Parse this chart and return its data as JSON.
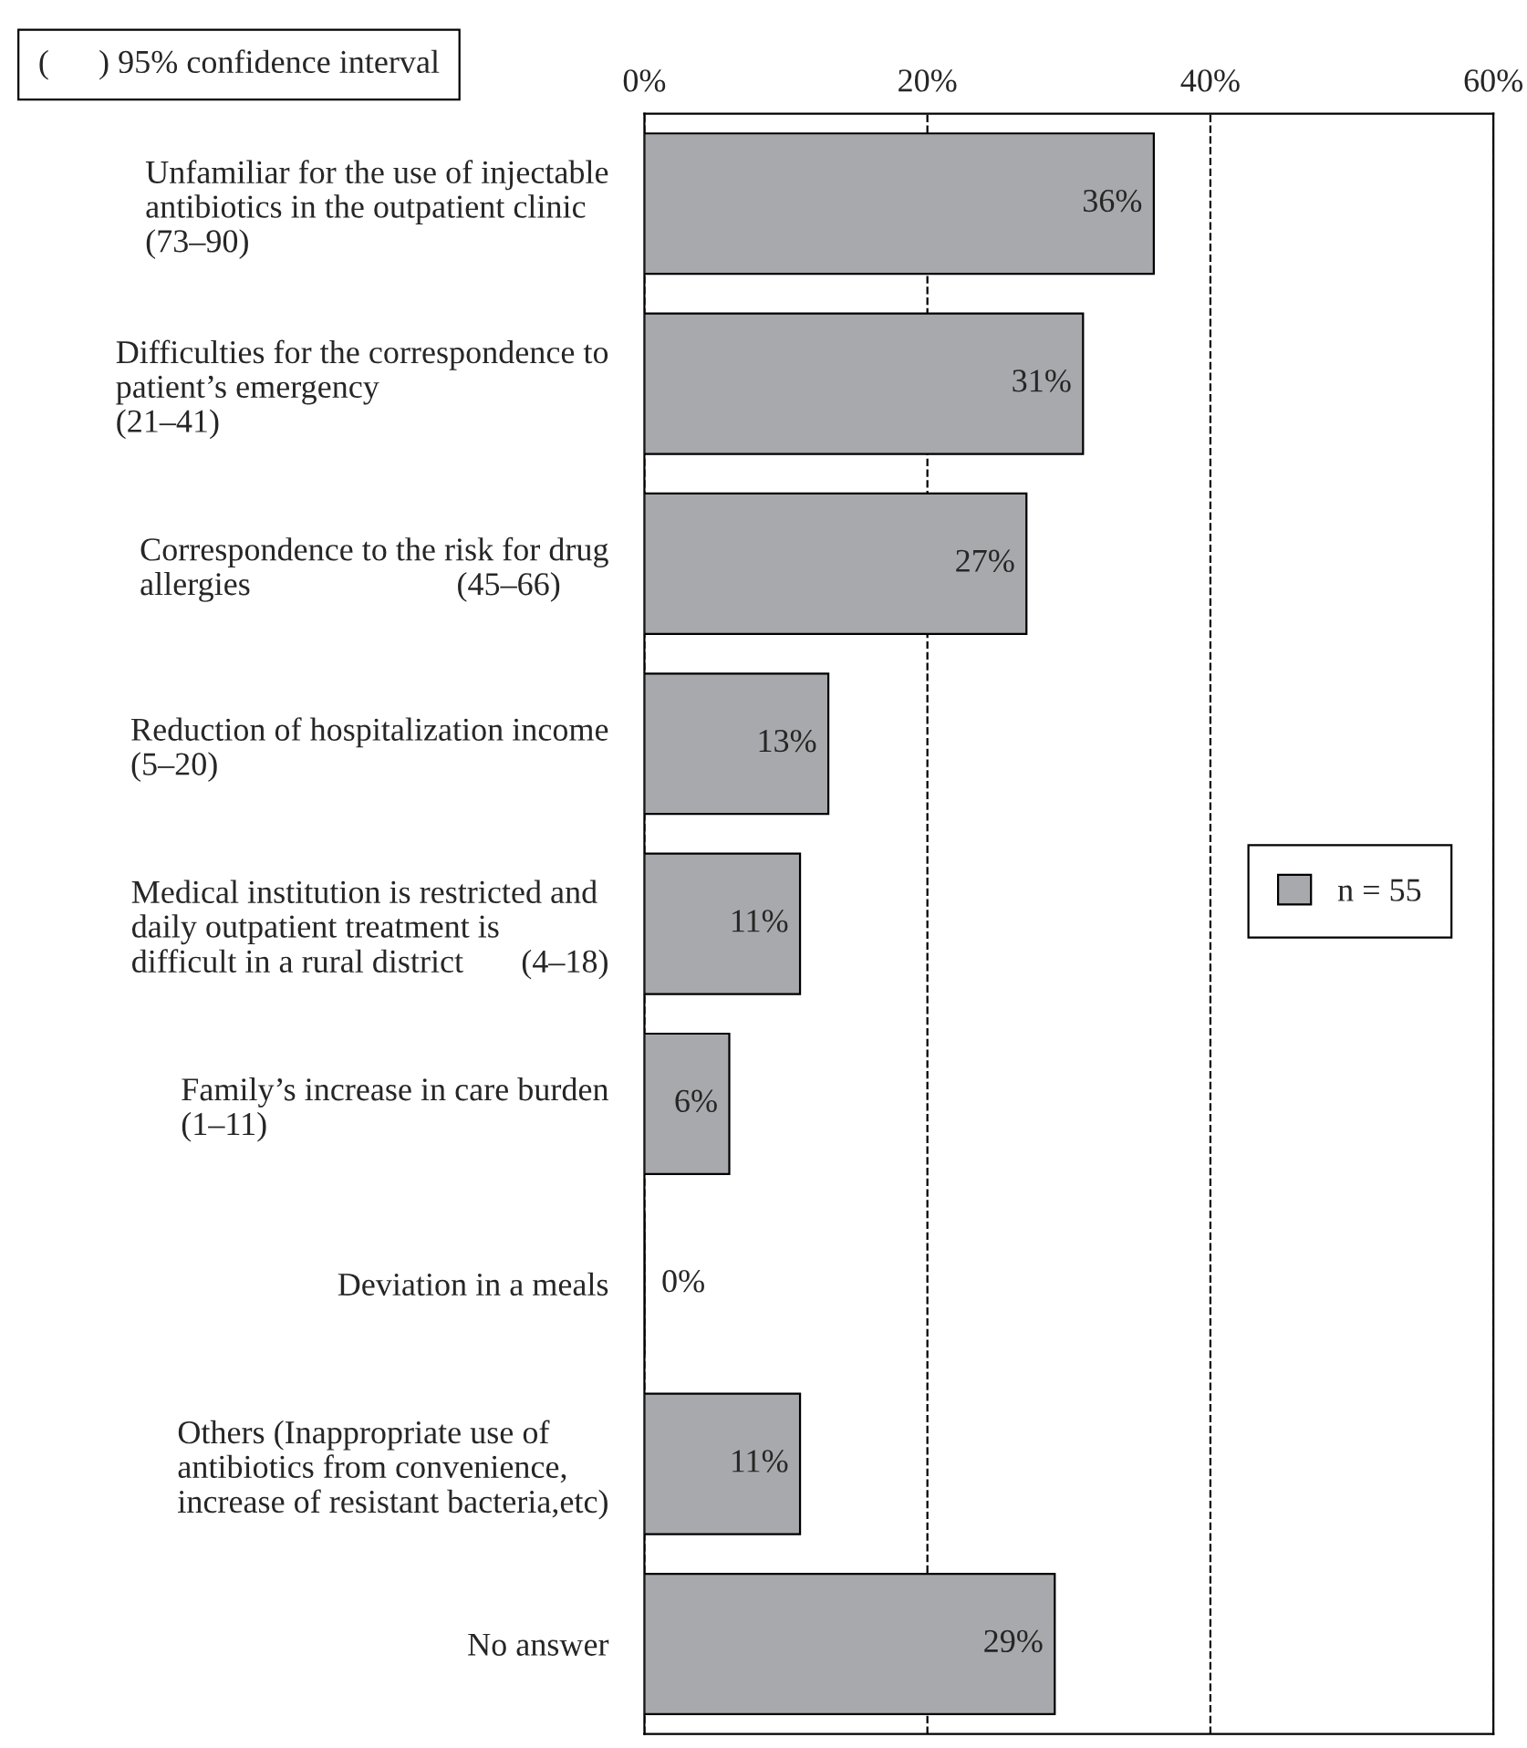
{
  "chart_data": {
    "type": "bar",
    "orientation": "horizontal",
    "categories": [
      "Unfamiliar for the use of injectable\nantibiotics in the outpatient clinic\n(73–90)",
      "Difficulties for the correspondence to\npatient’s emergency\n(21–41)",
      "Correspondence to the risk for drug\nallergies                         (45–66)",
      "Reduction of hospitalization income\n(5–20)",
      "Medical institution is restricted and\ndaily outpatient treatment is\ndifficult in a rural district       (4–18)",
      "Family’s increase in care burden\n(1–11)",
      "Deviation in a meals",
      "Others (Inappropriate use of\nantibiotics from convenience,\nincrease of resistant bacteria,etc)",
      "No answer"
    ],
    "series": [
      {
        "name": "n = 55",
        "color": "#a7a9ac",
        "values": [
          36,
          31,
          27,
          13,
          11,
          6,
          0,
          11,
          29
        ],
        "value_labels": [
          "36%",
          "31%",
          "27%",
          "13%",
          "11%",
          "6%",
          "0%",
          "11%",
          "29%"
        ]
      }
    ],
    "xlim": [
      0,
      60
    ],
    "xticks": [
      {
        "value": 0,
        "label": "0%"
      },
      {
        "value": 20,
        "label": "20%"
      },
      {
        "value": 40,
        "label": "40%"
      },
      {
        "value": 60,
        "label": "60%"
      }
    ],
    "grid": "x",
    "legend": "right",
    "annotations": [
      "(      ) 95% confidence interval"
    ]
  }
}
